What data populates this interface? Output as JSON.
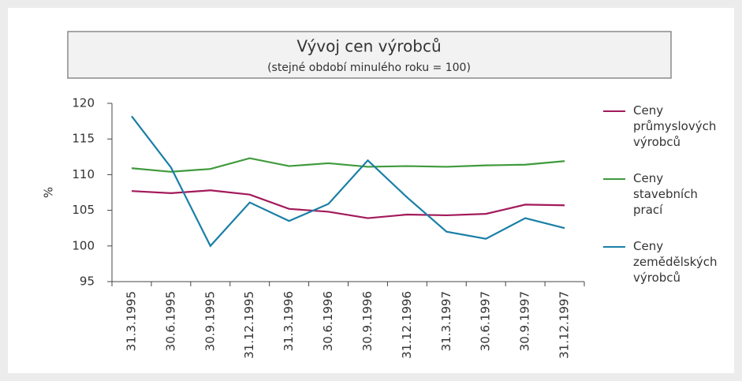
{
  "chart_data": {
    "type": "line",
    "title": "Vývoj cen výrobců",
    "subtitle": "(stejné období minulého roku = 100)",
    "y_label": "%",
    "categories": [
      "31.3.1995",
      "30.6.1995",
      "30.9.1995",
      "31.12.1995",
      "31.3.1996",
      "30.6.1996",
      "30.9.1996",
      "31.12.1996",
      "31.3.1997",
      "30.6.1997",
      "30.9.1997",
      "31.12.1997"
    ],
    "series": [
      {
        "name": "Ceny průmyslových výrobců",
        "color": "#a3195b",
        "values": [
          107.7,
          107.4,
          107.8,
          107.2,
          105.2,
          104.8,
          103.9,
          104.4,
          104.3,
          104.5,
          105.8,
          105.7
        ]
      },
      {
        "name": "Ceny stavebních prací",
        "color": "#3f9a3c",
        "values": [
          110.9,
          110.4,
          110.8,
          112.3,
          111.2,
          111.6,
          111.1,
          111.2,
          111.1,
          111.3,
          111.4,
          111.9
        ]
      },
      {
        "name": "Ceny zemědělských výrobců",
        "color": "#1a7fa6",
        "values": [
          118.2,
          111.0,
          100.0,
          106.1,
          103.5,
          105.9,
          112.0,
          106.8,
          102.0,
          101.0,
          103.9,
          102.5
        ]
      }
    ],
    "ylim": [
      95,
      120
    ],
    "yticks": [
      95,
      100,
      105,
      110,
      115,
      120
    ]
  }
}
